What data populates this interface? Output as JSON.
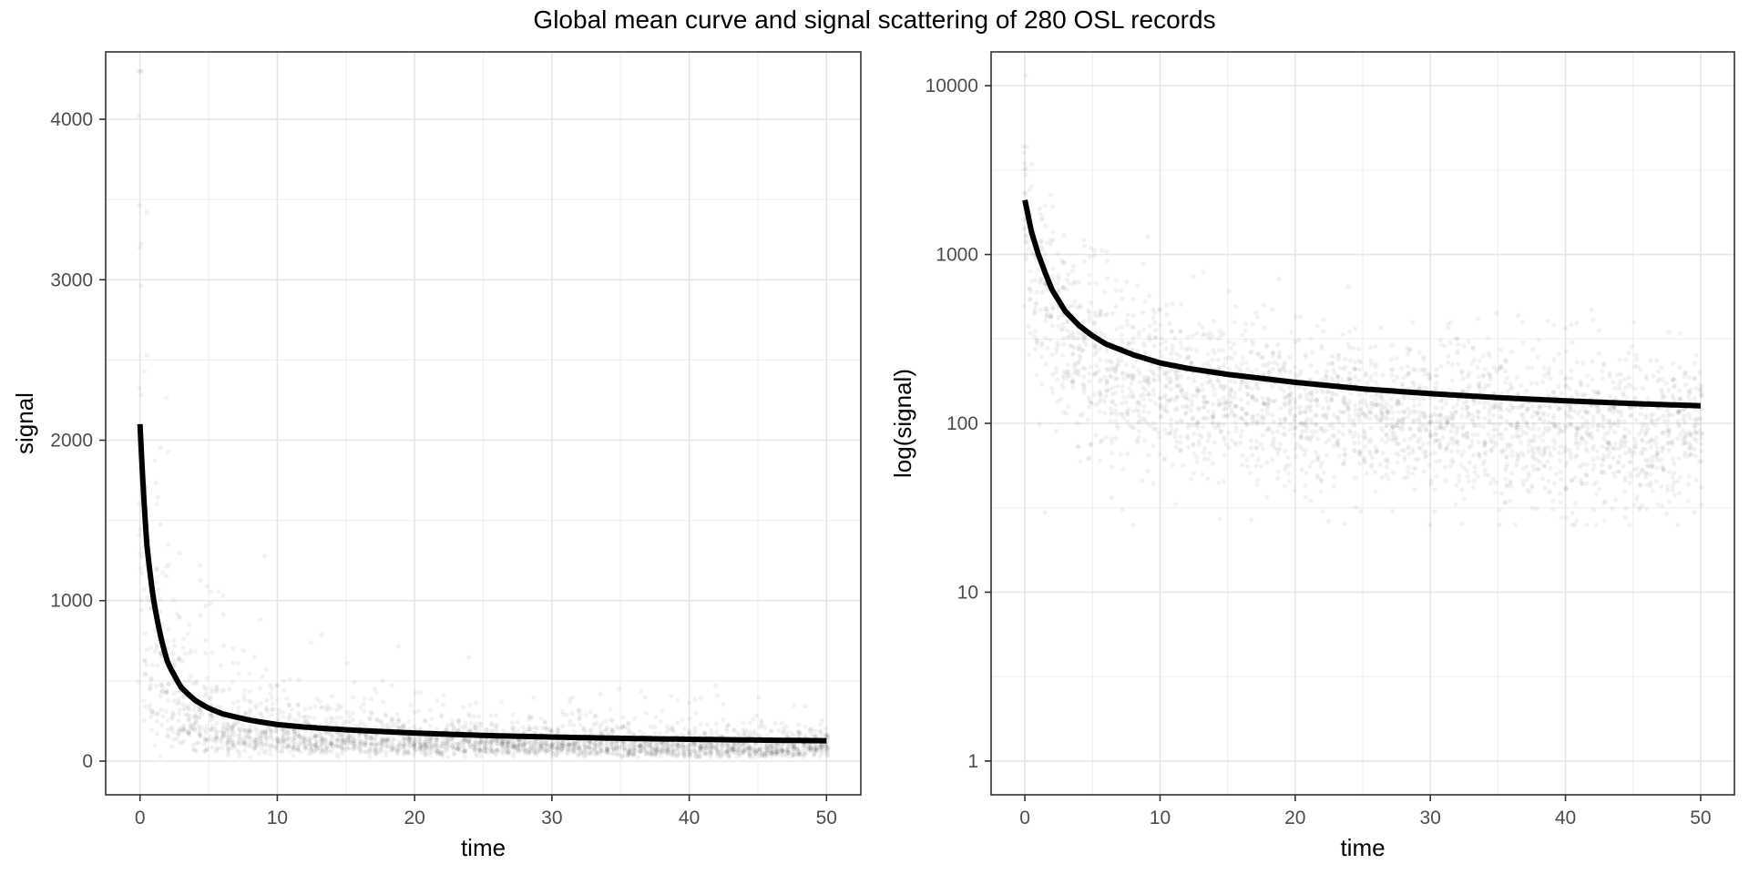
{
  "figure": {
    "title": "Global mean curve and signal scattering of 280 OSL records"
  },
  "chart_data": [
    {
      "type": "scatter",
      "panel": "left",
      "xlabel": "time",
      "ylabel": "signal",
      "xlim": [
        -2.5,
        52.5
      ],
      "ylim": [
        -210,
        4420
      ],
      "xticks": [
        0,
        10,
        20,
        30,
        40,
        50
      ],
      "yticks": [
        0,
        1000,
        2000,
        3000,
        4000
      ],
      "xtick_labels": [
        "0",
        "10",
        "20",
        "30",
        "40",
        "50"
      ],
      "ytick_labels": [
        "0",
        "1000",
        "2000",
        "3000",
        "4000"
      ],
      "y_scale": "linear",
      "grid": true,
      "scatter_color": "#000000",
      "mean_curve_color": "#000000",
      "n_records": 280,
      "mean_curve": {
        "x": [
          0,
          0.5,
          1,
          1.5,
          2,
          3,
          4,
          5,
          6,
          8,
          10,
          12,
          15,
          20,
          25,
          30,
          35,
          40,
          45,
          50
        ],
        "y": [
          2100,
          1350,
          1000,
          780,
          620,
          460,
          380,
          330,
          295,
          255,
          228,
          212,
          195,
          175,
          160,
          150,
          142,
          136,
          131,
          127
        ]
      }
    },
    {
      "type": "scatter",
      "panel": "right",
      "xlabel": "time",
      "ylabel": "log(signal)",
      "xlim": [
        -2.5,
        52.5
      ],
      "ylim_log10": [
        -0.2,
        4.2
      ],
      "xticks": [
        0,
        10,
        20,
        30,
        40,
        50
      ],
      "yticks": [
        1,
        10,
        100,
        1000,
        10000
      ],
      "xtick_labels": [
        "0",
        "10",
        "20",
        "30",
        "40",
        "50"
      ],
      "ytick_labels": [
        "1",
        "10",
        "100",
        "1000",
        "10000"
      ],
      "y_scale": "log",
      "grid": true,
      "scatter_color": "#000000",
      "mean_curve_color": "#000000",
      "n_records": 280,
      "mean_curve": {
        "x": [
          0,
          0.5,
          1,
          1.5,
          2,
          3,
          4,
          5,
          6,
          8,
          10,
          12,
          15,
          20,
          25,
          30,
          35,
          40,
          45,
          50
        ],
        "y": [
          2100,
          1350,
          1000,
          780,
          620,
          460,
          380,
          330,
          295,
          255,
          228,
          212,
          195,
          175,
          160,
          150,
          142,
          136,
          131,
          127
        ]
      }
    }
  ]
}
